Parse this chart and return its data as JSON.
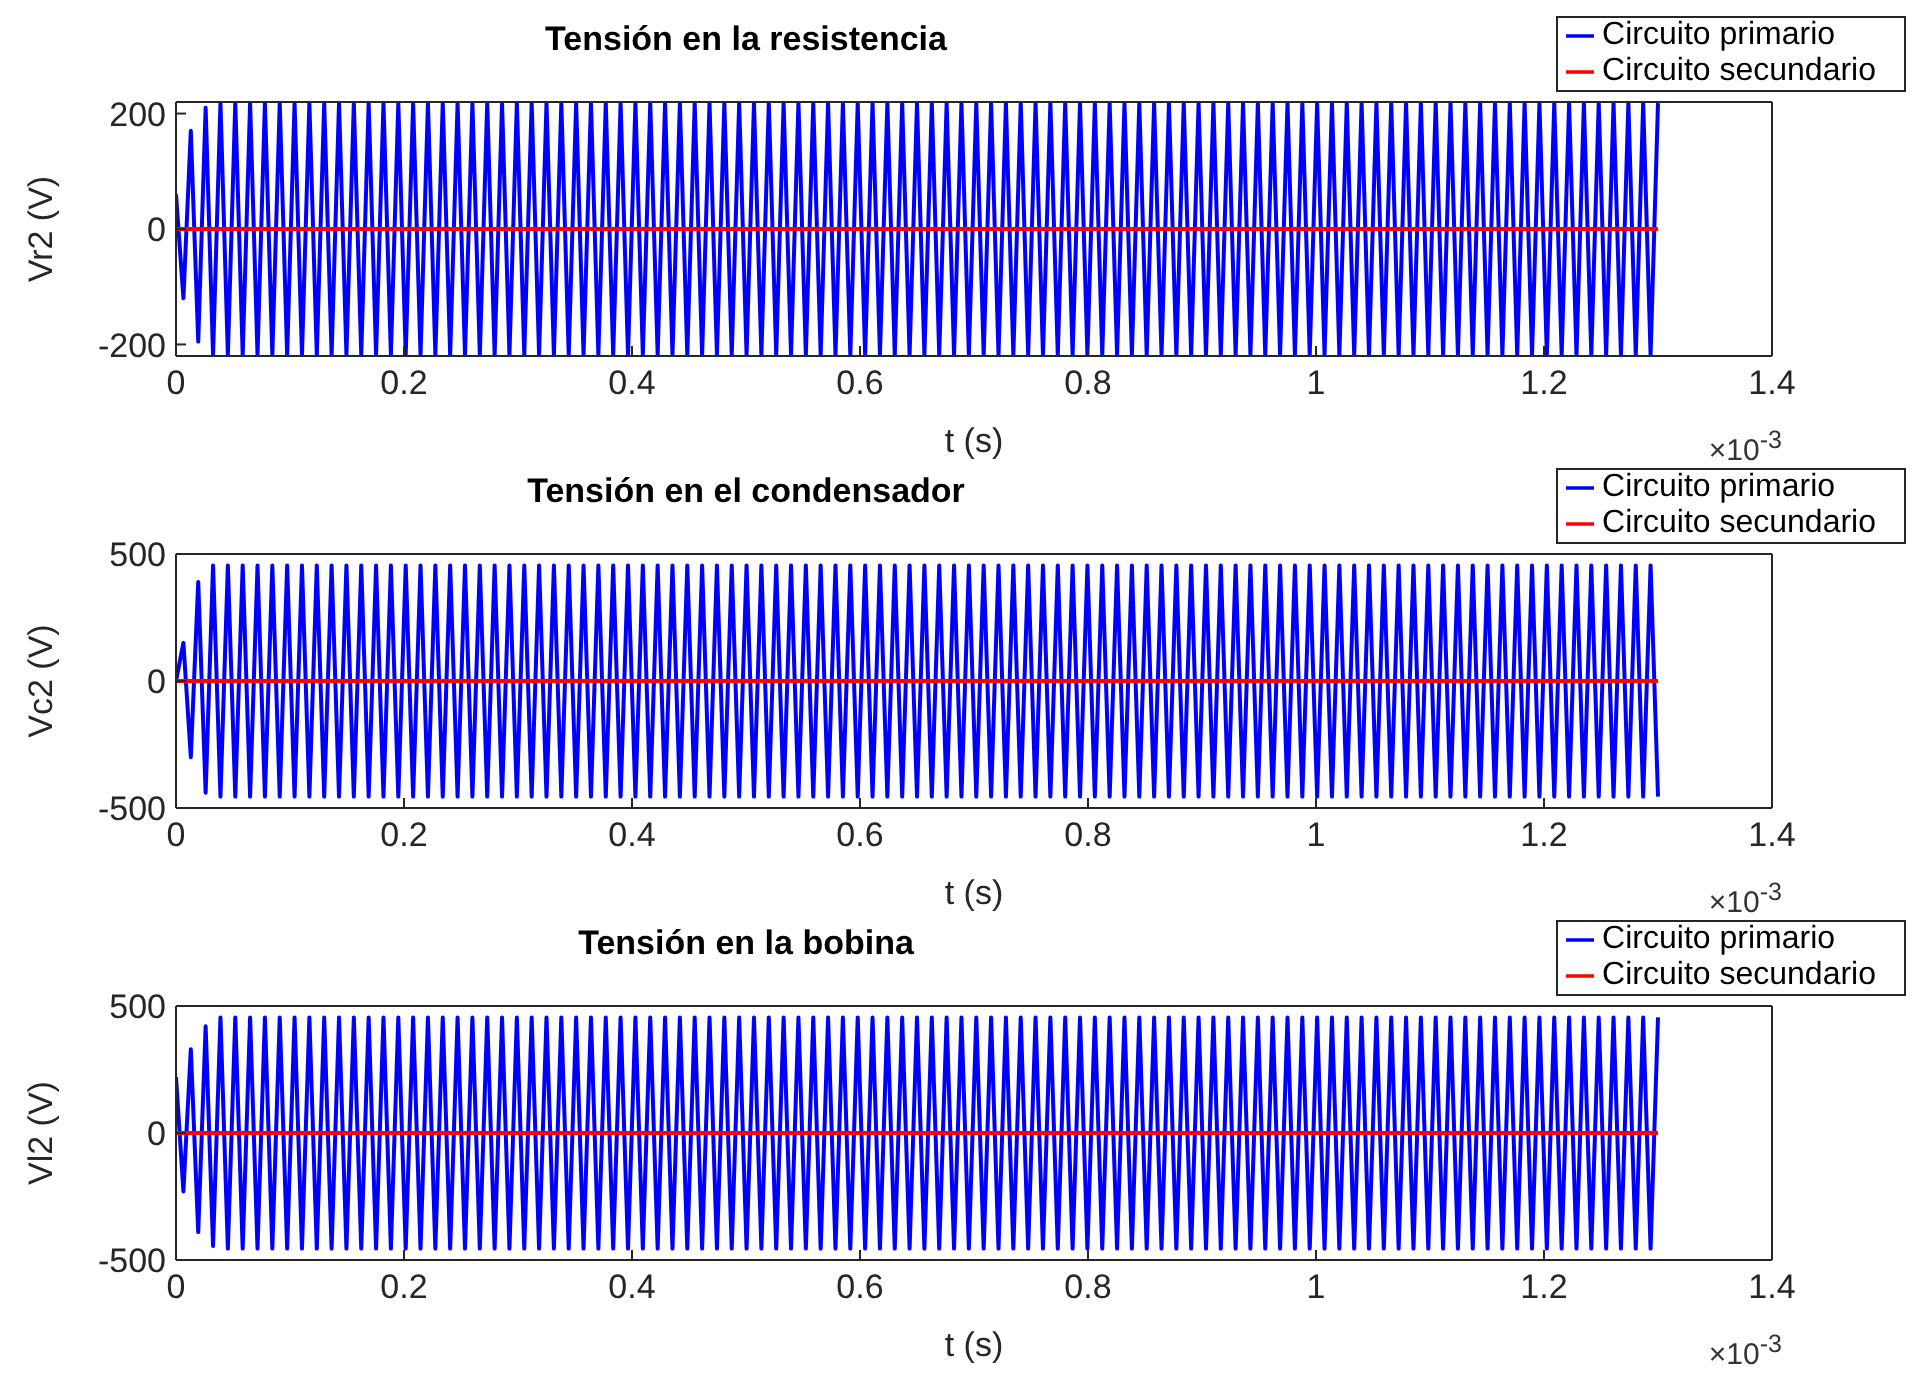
{
  "chart_data": [
    {
      "type": "line",
      "title": "Tensión en la resistencia",
      "xlabel": "t (s)",
      "ylabel": "Vr2 (V)",
      "annotations": [
        "×10$^{-3}$"
      ],
      "xlim": [
        0,
        1.4
      ],
      "xticks": [
        0,
        0.2,
        0.4,
        0.6,
        0.8,
        1,
        1.2,
        1.4
      ],
      "ylim": [
        -220,
        220
      ],
      "yticks": [
        -200,
        0,
        200
      ],
      "legend": "top right",
      "x": [
        0,
        0.0065,
        0.013,
        0.0195,
        0.026,
        0.0325,
        0.039,
        0.0455,
        0.052,
        0.0585,
        0.065,
        0.0715,
        0.078,
        0.0845,
        0.091,
        0.0975,
        0.104,
        0.1105,
        0.117,
        0.1235,
        0.13,
        0.1365,
        0.143,
        0.1495,
        0.156,
        0.1625,
        0.169,
        0.1755,
        0.182,
        0.1885,
        0.195,
        0.2015,
        0.208,
        0.2145,
        0.221,
        0.2275,
        0.234,
        0.2405,
        0.247,
        0.2535,
        0.26,
        0.2665,
        0.273,
        0.2795,
        0.286,
        0.2925,
        0.299,
        0.3055,
        0.312,
        0.3185,
        0.325,
        0.3315,
        0.338,
        0.3445,
        0.351,
        0.3575,
        0.364,
        0.3705,
        0.377,
        0.3835,
        0.39,
        0.3965,
        0.403,
        0.4095,
        0.416,
        0.4225,
        0.429,
        0.4355,
        0.442,
        0.4485,
        0.455,
        0.4615,
        0.468,
        0.4745,
        0.481,
        0.4875,
        0.494,
        0.5005,
        0.507,
        0.5135,
        0.52,
        0.5265,
        0.533,
        0.5395,
        0.546,
        0.5525,
        0.559,
        0.5655,
        0.572,
        0.5785,
        0.585,
        0.5915,
        0.598,
        0.6045,
        0.611,
        0.6175,
        0.624,
        0.6305,
        0.637,
        0.6435,
        0.65,
        0.6565,
        0.663,
        0.6695,
        0.676,
        0.6825,
        0.689,
        0.6955,
        0.702,
        0.7085,
        0.715,
        0.7215,
        0.728,
        0.7345,
        0.741,
        0.7475,
        0.754,
        0.7605,
        0.767,
        0.7735,
        0.78,
        0.7865,
        0.793,
        0.7995,
        0.806,
        0.8125,
        0.819,
        0.8255,
        0.832,
        0.8385,
        0.845,
        0.8515,
        0.858,
        0.8645,
        0.871,
        0.8775,
        0.884,
        0.8905,
        0.897,
        0.9035,
        0.91,
        0.9165,
        0.923,
        0.9295,
        0.936,
        0.9425,
        0.949,
        0.9555,
        0.962,
        0.9685,
        0.975,
        0.9815,
        0.988,
        0.9945,
        1.001,
        1.0075,
        1.014,
        1.0205,
        1.027,
        1.0335,
        1.04,
        1.0465,
        1.053,
        1.0595,
        1.066,
        1.0725,
        1.079,
        1.0855,
        1.092,
        1.0985,
        1.105,
        1.1115,
        1.118,
        1.1245,
        1.131,
        1.1375,
        1.144,
        1.1505,
        1.157,
        1.1635,
        1.17,
        1.1765,
        1.183,
        1.1895,
        1.196,
        1.2025,
        1.209,
        1.2155,
        1.222,
        1.2285,
        1.235,
        1.2415,
        1.248,
        1.2545,
        1.261,
        1.2675,
        1.274,
        1.2805,
        1.287,
        1.2935,
        1.3
      ],
      "series": [
        {
          "name": "Circuito primario",
          "color": "#0000ff",
          "values": [
            60,
            -120,
            170,
            -195,
            210,
            -218,
            218,
            -218,
            218,
            -218,
            218,
            -218,
            218,
            -218,
            218,
            -218,
            218,
            -218,
            218,
            -218,
            218,
            -218,
            218,
            -218,
            218,
            -218,
            218,
            -218,
            218,
            -218,
            218,
            -218,
            218,
            -218,
            218,
            -218,
            218,
            -218,
            218,
            -218,
            218,
            -218,
            218,
            -218,
            218,
            -218,
            218,
            -218,
            218,
            -218,
            218,
            -218,
            218,
            -218,
            218,
            -218,
            218,
            -218,
            218,
            -218,
            218,
            -218,
            218,
            -218,
            218,
            -218,
            218,
            -218,
            218,
            -218,
            218,
            -218,
            218,
            -218,
            218,
            -218,
            218,
            -218,
            218,
            -218,
            218,
            -218,
            218,
            -218,
            218,
            -218,
            218,
            -218,
            218,
            -218,
            218,
            -218,
            218,
            -218,
            218,
            -218,
            218,
            -218,
            218,
            -218,
            218,
            -218,
            218,
            -218,
            218,
            -218,
            218,
            -218,
            218,
            -218,
            218,
            -218,
            218,
            -218,
            218,
            -218,
            218,
            -218,
            218,
            -218,
            218,
            -218,
            218,
            -218,
            218,
            -218,
            218,
            -218,
            218,
            -218,
            218,
            -218,
            218,
            -218,
            218,
            -218,
            218,
            -218,
            218,
            -218,
            218,
            -218,
            218,
            -218,
            218,
            -218,
            218,
            -218,
            218,
            -218,
            218,
            -218,
            218,
            -218,
            218,
            -218,
            218,
            -218,
            218,
            -218,
            218,
            -218,
            218,
            -218,
            218,
            -218,
            218,
            -218,
            218,
            -218,
            218,
            -218,
            218,
            -218,
            218,
            -218,
            218,
            -218,
            218,
            -218,
            218,
            -218,
            218,
            -218,
            218,
            -218,
            218,
            -218,
            218,
            -218,
            218,
            -218,
            218,
            -218,
            218,
            -218,
            218,
            -218,
            218,
            -218,
            218
          ]
        },
        {
          "name": "Circuito secundario",
          "color": "#ff0000",
          "values": [
            0,
            0,
            0,
            0,
            0,
            0,
            0,
            0,
            0,
            0,
            0,
            0,
            0,
            0,
            0,
            0,
            0,
            0,
            0,
            0,
            0,
            0,
            0,
            0,
            0,
            0,
            0,
            0,
            0,
            0,
            0,
            0,
            0,
            0,
            0,
            0,
            0,
            0,
            0,
            0,
            0,
            0,
            0,
            0,
            0,
            0,
            0,
            0,
            0,
            0,
            0,
            0,
            0,
            0,
            0,
            0,
            0,
            0,
            0,
            0,
            0,
            0,
            0,
            0,
            0,
            0,
            0,
            0,
            0,
            0,
            0,
            0,
            0,
            0,
            0,
            0,
            0,
            0,
            0,
            0,
            0,
            0,
            0,
            0,
            0,
            0,
            0,
            0,
            0,
            0,
            0,
            0,
            0,
            0,
            0,
            0,
            0,
            0,
            0,
            0,
            0,
            0,
            0,
            0,
            0,
            0,
            0,
            0,
            0,
            0,
            0,
            0,
            0,
            0,
            0,
            0,
            0,
            0,
            0,
            0,
            0,
            0,
            0,
            0,
            0,
            0,
            0,
            0,
            0,
            0,
            0,
            0,
            0,
            0,
            0,
            0,
            0,
            0,
            0,
            0,
            0,
            0,
            0,
            0,
            0,
            0,
            0,
            0,
            0,
            0,
            0,
            0,
            0,
            0,
            0,
            0,
            0,
            0,
            0,
            0,
            0,
            0,
            0,
            0,
            0,
            0,
            0,
            0,
            0,
            0,
            0,
            0,
            0,
            0,
            0,
            0,
            0,
            0,
            0,
            0,
            0,
            0,
            0,
            0,
            0,
            0,
            0,
            0,
            0,
            0,
            0,
            0,
            0,
            0,
            0,
            0,
            0,
            0,
            0,
            0,
            0
          ]
        }
      ]
    },
    {
      "type": "line",
      "title": "Tensión en el condensador",
      "xlabel": "t (s)",
      "ylabel": "Vc2 (V)",
      "annotations": [
        "×10$^{-3}$"
      ],
      "xlim": [
        0,
        1.4
      ],
      "xticks": [
        0,
        0.2,
        0.4,
        0.6,
        0.8,
        1,
        1.2,
        1.4
      ],
      "ylim": [
        -500,
        500
      ],
      "yticks": [
        -500,
        0,
        500
      ],
      "legend": "top right",
      "x": [
        0,
        0.0065,
        0.013,
        0.0195,
        0.026,
        0.0325,
        0.039,
        0.0455,
        0.052,
        0.0585,
        0.065,
        0.0715,
        0.078,
        0.0845,
        0.091,
        0.0975,
        0.104,
        0.1105,
        0.117,
        0.1235,
        0.13,
        0.1365,
        0.143,
        0.1495,
        0.156,
        0.1625,
        0.169,
        0.1755,
        0.182,
        0.1885,
        0.195,
        0.2015,
        0.208,
        0.2145,
        0.221,
        0.2275,
        0.234,
        0.2405,
        0.247,
        0.2535,
        0.26,
        0.2665,
        0.273,
        0.2795,
        0.286,
        0.2925,
        0.299,
        0.3055,
        0.312,
        0.3185,
        0.325,
        0.3315,
        0.338,
        0.3445,
        0.351,
        0.3575,
        0.364,
        0.3705,
        0.377,
        0.3835,
        0.39,
        0.3965,
        0.403,
        0.4095,
        0.416,
        0.4225,
        0.429,
        0.4355,
        0.442,
        0.4485,
        0.455,
        0.4615,
        0.468,
        0.4745,
        0.481,
        0.4875,
        0.494,
        0.5005,
        0.507,
        0.5135,
        0.52,
        0.5265,
        0.533,
        0.5395,
        0.546,
        0.5525,
        0.559,
        0.5655,
        0.572,
        0.5785,
        0.585,
        0.5915,
        0.598,
        0.6045,
        0.611,
        0.6175,
        0.624,
        0.6305,
        0.637,
        0.6435,
        0.65,
        0.6565,
        0.663,
        0.6695,
        0.676,
        0.6825,
        0.689,
        0.6955,
        0.702,
        0.7085,
        0.715,
        0.7215,
        0.728,
        0.7345,
        0.741,
        0.7475,
        0.754,
        0.7605,
        0.767,
        0.7735,
        0.78,
        0.7865,
        0.793,
        0.7995,
        0.806,
        0.8125,
        0.819,
        0.8255,
        0.832,
        0.8385,
        0.845,
        0.8515,
        0.858,
        0.8645,
        0.871,
        0.8775,
        0.884,
        0.8905,
        0.897,
        0.9035,
        0.91,
        0.9165,
        0.923,
        0.9295,
        0.936,
        0.9425,
        0.949,
        0.9555,
        0.962,
        0.9685,
        0.975,
        0.9815,
        0.988,
        0.9945,
        1.001,
        1.0075,
        1.014,
        1.0205,
        1.027,
        1.0335,
        1.04,
        1.0465,
        1.053,
        1.0595,
        1.066,
        1.0725,
        1.079,
        1.0855,
        1.092,
        1.0985,
        1.105,
        1.1115,
        1.118,
        1.1245,
        1.131,
        1.1375,
        1.144,
        1.1505,
        1.157,
        1.1635,
        1.17,
        1.1765,
        1.183,
        1.1895,
        1.196,
        1.2025,
        1.209,
        1.2155,
        1.222,
        1.2285,
        1.235,
        1.2415,
        1.248,
        1.2545,
        1.261,
        1.2675,
        1.274,
        1.2805,
        1.287,
        1.2935,
        1.3
      ],
      "series": [
        {
          "name": "Circuito primario",
          "color": "#0000ff",
          "values": [
            0,
            150,
            -300,
            390,
            -440,
            455,
            -455,
            455,
            -455,
            455,
            -455,
            455,
            -455,
            455,
            -455,
            455,
            -455,
            455,
            -455,
            455,
            -455,
            455,
            -455,
            455,
            -455,
            455,
            -455,
            455,
            -455,
            455,
            -455,
            455,
            -455,
            455,
            -455,
            455,
            -455,
            455,
            -455,
            455,
            -455,
            455,
            -455,
            455,
            -455,
            455,
            -455,
            455,
            -455,
            455,
            -455,
            455,
            -455,
            455,
            -455,
            455,
            -455,
            455,
            -455,
            455,
            -455,
            455,
            -455,
            455,
            -455,
            455,
            -455,
            455,
            -455,
            455,
            -455,
            455,
            -455,
            455,
            -455,
            455,
            -455,
            455,
            -455,
            455,
            -455,
            455,
            -455,
            455,
            -455,
            455,
            -455,
            455,
            -455,
            455,
            -455,
            455,
            -455,
            455,
            -455,
            455,
            -455,
            455,
            -455,
            455,
            -455,
            455,
            -455,
            455,
            -455,
            455,
            -455,
            455,
            -455,
            455,
            -455,
            455,
            -455,
            455,
            -455,
            455,
            -455,
            455,
            -455,
            455,
            -455,
            455,
            -455,
            455,
            -455,
            455,
            -455,
            455,
            -455,
            455,
            -455,
            455,
            -455,
            455,
            -455,
            455,
            -455,
            455,
            -455,
            455,
            -455,
            455,
            -455,
            455,
            -455,
            455,
            -455,
            455,
            -455,
            455,
            -455,
            455,
            -455,
            455,
            -455,
            455,
            -455,
            455,
            -455,
            455,
            -455,
            455,
            -455,
            455,
            -455,
            455,
            -455,
            455,
            -455,
            455,
            -455,
            455,
            -455,
            455,
            -455,
            455,
            -455,
            455,
            -455,
            455,
            -455,
            455,
            -455,
            455,
            -455,
            455,
            -455,
            455,
            -455,
            455,
            -455,
            455,
            -455,
            455,
            -455,
            455,
            -455,
            455,
            -455,
            455,
            -455
          ]
        },
        {
          "name": "Circuito secundario",
          "color": "#ff0000",
          "values": [
            0,
            0,
            0,
            0,
            0,
            0,
            0,
            0,
            0,
            0,
            0,
            0,
            0,
            0,
            0,
            0,
            0,
            0,
            0,
            0,
            0,
            0,
            0,
            0,
            0,
            0,
            0,
            0,
            0,
            0,
            0,
            0,
            0,
            0,
            0,
            0,
            0,
            0,
            0,
            0,
            0,
            0,
            0,
            0,
            0,
            0,
            0,
            0,
            0,
            0,
            0,
            0,
            0,
            0,
            0,
            0,
            0,
            0,
            0,
            0,
            0,
            0,
            0,
            0,
            0,
            0,
            0,
            0,
            0,
            0,
            0,
            0,
            0,
            0,
            0,
            0,
            0,
            0,
            0,
            0,
            0,
            0,
            0,
            0,
            0,
            0,
            0,
            0,
            0,
            0,
            0,
            0,
            0,
            0,
            0,
            0,
            0,
            0,
            0,
            0,
            0,
            0,
            0,
            0,
            0,
            0,
            0,
            0,
            0,
            0,
            0,
            0,
            0,
            0,
            0,
            0,
            0,
            0,
            0,
            0,
            0,
            0,
            0,
            0,
            0,
            0,
            0,
            0,
            0,
            0,
            0,
            0,
            0,
            0,
            0,
            0,
            0,
            0,
            0,
            0,
            0,
            0,
            0,
            0,
            0,
            0,
            0,
            0,
            0,
            0,
            0,
            0,
            0,
            0,
            0,
            0,
            0,
            0,
            0,
            0,
            0,
            0,
            0,
            0,
            0,
            0,
            0,
            0,
            0,
            0,
            0,
            0,
            0,
            0,
            0,
            0,
            0,
            0,
            0,
            0,
            0,
            0,
            0,
            0,
            0,
            0,
            0,
            0,
            0,
            0,
            0,
            0,
            0,
            0,
            0,
            0,
            0,
            0,
            0,
            0,
            0
          ]
        }
      ]
    },
    {
      "type": "line",
      "title": "Tensión en la bobina",
      "xlabel": "t (s)",
      "ylabel": "Vl2 (V)",
      "annotations": [
        "×10$^{-3}$"
      ],
      "xlim": [
        0,
        1.4
      ],
      "xticks": [
        0,
        0.2,
        0.4,
        0.6,
        0.8,
        1,
        1.2,
        1.4
      ],
      "ylim": [
        -500,
        500
      ],
      "yticks": [
        -500,
        0,
        500
      ],
      "legend": "top right",
      "x": [
        0,
        0.0065,
        0.013,
        0.0195,
        0.026,
        0.0325,
        0.039,
        0.0455,
        0.052,
        0.0585,
        0.065,
        0.0715,
        0.078,
        0.0845,
        0.091,
        0.0975,
        0.104,
        0.1105,
        0.117,
        0.1235,
        0.13,
        0.1365,
        0.143,
        0.1495,
        0.156,
        0.1625,
        0.169,
        0.1755,
        0.182,
        0.1885,
        0.195,
        0.2015,
        0.208,
        0.2145,
        0.221,
        0.2275,
        0.234,
        0.2405,
        0.247,
        0.2535,
        0.26,
        0.2665,
        0.273,
        0.2795,
        0.286,
        0.2925,
        0.299,
        0.3055,
        0.312,
        0.3185,
        0.325,
        0.3315,
        0.338,
        0.3445,
        0.351,
        0.3575,
        0.364,
        0.3705,
        0.377,
        0.3835,
        0.39,
        0.3965,
        0.403,
        0.4095,
        0.416,
        0.4225,
        0.429,
        0.4355,
        0.442,
        0.4485,
        0.455,
        0.4615,
        0.468,
        0.4745,
        0.481,
        0.4875,
        0.494,
        0.5005,
        0.507,
        0.5135,
        0.52,
        0.5265,
        0.533,
        0.5395,
        0.546,
        0.5525,
        0.559,
        0.5655,
        0.572,
        0.5785,
        0.585,
        0.5915,
        0.598,
        0.6045,
        0.611,
        0.6175,
        0.624,
        0.6305,
        0.637,
        0.6435,
        0.65,
        0.6565,
        0.663,
        0.6695,
        0.676,
        0.6825,
        0.689,
        0.6955,
        0.702,
        0.7085,
        0.715,
        0.7215,
        0.728,
        0.7345,
        0.741,
        0.7475,
        0.754,
        0.7605,
        0.767,
        0.7735,
        0.78,
        0.7865,
        0.793,
        0.7995,
        0.806,
        0.8125,
        0.819,
        0.8255,
        0.832,
        0.8385,
        0.845,
        0.8515,
        0.858,
        0.8645,
        0.871,
        0.8775,
        0.884,
        0.8905,
        0.897,
        0.9035,
        0.91,
        0.9165,
        0.923,
        0.9295,
        0.936,
        0.9425,
        0.949,
        0.9555,
        0.962,
        0.9685,
        0.975,
        0.9815,
        0.988,
        0.9945,
        1.001,
        1.0075,
        1.014,
        1.0205,
        1.027,
        1.0335,
        1.04,
        1.0465,
        1.053,
        1.0595,
        1.066,
        1.0725,
        1.079,
        1.0855,
        1.092,
        1.0985,
        1.105,
        1.1115,
        1.118,
        1.1245,
        1.131,
        1.1375,
        1.144,
        1.1505,
        1.157,
        1.1635,
        1.17,
        1.1765,
        1.183,
        1.1895,
        1.196,
        1.2025,
        1.209,
        1.2155,
        1.222,
        1.2285,
        1.235,
        1.2415,
        1.248,
        1.2545,
        1.261,
        1.2675,
        1.274,
        1.2805,
        1.287,
        1.2935,
        1.3
      ],
      "series": [
        {
          "name": "Circuito primario",
          "color": "#0000ff",
          "values": [
            220,
            -230,
            330,
            -390,
            420,
            -445,
            455,
            -455,
            455,
            -455,
            455,
            -455,
            455,
            -455,
            455,
            -455,
            455,
            -455,
            455,
            -455,
            455,
            -455,
            455,
            -455,
            455,
            -455,
            455,
            -455,
            455,
            -455,
            455,
            -455,
            455,
            -455,
            455,
            -455,
            455,
            -455,
            455,
            -455,
            455,
            -455,
            455,
            -455,
            455,
            -455,
            455,
            -455,
            455,
            -455,
            455,
            -455,
            455,
            -455,
            455,
            -455,
            455,
            -455,
            455,
            -455,
            455,
            -455,
            455,
            -455,
            455,
            -455,
            455,
            -455,
            455,
            -455,
            455,
            -455,
            455,
            -455,
            455,
            -455,
            455,
            -455,
            455,
            -455,
            455,
            -455,
            455,
            -455,
            455,
            -455,
            455,
            -455,
            455,
            -455,
            455,
            -455,
            455,
            -455,
            455,
            -455,
            455,
            -455,
            455,
            -455,
            455,
            -455,
            455,
            -455,
            455,
            -455,
            455,
            -455,
            455,
            -455,
            455,
            -455,
            455,
            -455,
            455,
            -455,
            455,
            -455,
            455,
            -455,
            455,
            -455,
            455,
            -455,
            455,
            -455,
            455,
            -455,
            455,
            -455,
            455,
            -455,
            455,
            -455,
            455,
            -455,
            455,
            -455,
            455,
            -455,
            455,
            -455,
            455,
            -455,
            455,
            -455,
            455,
            -455,
            455,
            -455,
            455,
            -455,
            455,
            -455,
            455,
            -455,
            455,
            -455,
            455,
            -455,
            455,
            -455,
            455,
            -455,
            455,
            -455,
            455,
            -455,
            455,
            -455,
            455,
            -455,
            455,
            -455,
            455,
            -455,
            455,
            -455,
            455,
            -455,
            455,
            -455,
            455,
            -455,
            455,
            -455,
            455,
            -455,
            455,
            -455,
            455,
            -455,
            455,
            -455,
            455,
            -455,
            455,
            -455,
            455,
            -455,
            455
          ]
        },
        {
          "name": "Circuito secundario",
          "color": "#ff0000",
          "values": [
            0,
            0,
            0,
            0,
            0,
            0,
            0,
            0,
            0,
            0,
            0,
            0,
            0,
            0,
            0,
            0,
            0,
            0,
            0,
            0,
            0,
            0,
            0,
            0,
            0,
            0,
            0,
            0,
            0,
            0,
            0,
            0,
            0,
            0,
            0,
            0,
            0,
            0,
            0,
            0,
            0,
            0,
            0,
            0,
            0,
            0,
            0,
            0,
            0,
            0,
            0,
            0,
            0,
            0,
            0,
            0,
            0,
            0,
            0,
            0,
            0,
            0,
            0,
            0,
            0,
            0,
            0,
            0,
            0,
            0,
            0,
            0,
            0,
            0,
            0,
            0,
            0,
            0,
            0,
            0,
            0,
            0,
            0,
            0,
            0,
            0,
            0,
            0,
            0,
            0,
            0,
            0,
            0,
            0,
            0,
            0,
            0,
            0,
            0,
            0,
            0,
            0,
            0,
            0,
            0,
            0,
            0,
            0,
            0,
            0,
            0,
            0,
            0,
            0,
            0,
            0,
            0,
            0,
            0,
            0,
            0,
            0,
            0,
            0,
            0,
            0,
            0,
            0,
            0,
            0,
            0,
            0,
            0,
            0,
            0,
            0,
            0,
            0,
            0,
            0,
            0,
            0,
            0,
            0,
            0,
            0,
            0,
            0,
            0,
            0,
            0,
            0,
            0,
            0,
            0,
            0,
            0,
            0,
            0,
            0,
            0,
            0,
            0,
            0,
            0,
            0,
            0,
            0,
            0,
            0,
            0,
            0,
            0,
            0,
            0,
            0,
            0,
            0,
            0,
            0,
            0,
            0,
            0,
            0,
            0,
            0,
            0,
            0,
            0,
            0,
            0,
            0,
            0,
            0,
            0,
            0,
            0,
            0,
            0,
            0,
            0
          ]
        }
      ]
    }
  ]
}
